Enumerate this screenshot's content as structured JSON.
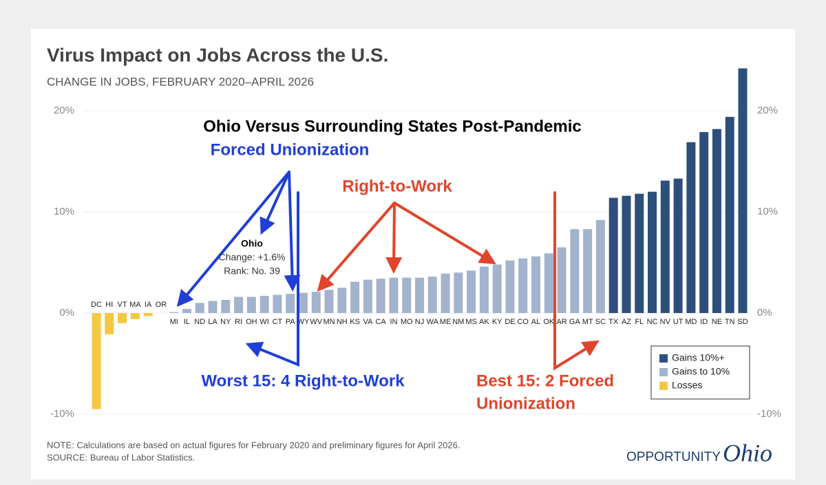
{
  "chart_data": {
    "type": "bar",
    "title": "Virus Impact on Jobs Across the U.S.",
    "subtitle": "CHANGE IN JOBS, FEBRUARY 2020–APRIL 2026",
    "categories": [
      "DC",
      "HI",
      "VT",
      "MA",
      "IA",
      "OR",
      "MI",
      "IL",
      "ND",
      "LA",
      "NY",
      "RI",
      "OH",
      "WI",
      "CT",
      "PA",
      "WY",
      "WV",
      "MN",
      "NH",
      "KS",
      "VA",
      "CA",
      "IN",
      "MO",
      "NJ",
      "WA",
      "ME",
      "NM",
      "MS",
      "AK",
      "KY",
      "DE",
      "CO",
      "AL",
      "OK",
      "AR",
      "GA",
      "MT",
      "SC",
      "TX",
      "AZ",
      "FL",
      "NC",
      "NV",
      "UT",
      "MD",
      "ID",
      "NE",
      "TN",
      "SD"
    ],
    "series": [
      {
        "name": "Gains 10%+",
        "color": "#2c4f7c",
        "values": [
          null,
          null,
          null,
          null,
          null,
          null,
          null,
          null,
          null,
          null,
          null,
          null,
          null,
          null,
          null,
          null,
          null,
          null,
          null,
          null,
          null,
          null,
          null,
          null,
          null,
          null,
          null,
          null,
          null,
          null,
          null,
          null,
          null,
          null,
          null,
          null,
          null,
          null,
          null,
          null,
          11.4,
          11.6,
          11.8,
          12.0,
          13.1,
          13.3,
          16.9,
          17.9,
          18.2,
          19.4,
          24.2
        ]
      },
      {
        "name": "Gains to 10%",
        "color": "#a3b3cd",
        "values": [
          null,
          null,
          null,
          null,
          null,
          null,
          0.1,
          0.4,
          1.0,
          1.2,
          1.3,
          1.6,
          1.6,
          1.7,
          1.8,
          1.9,
          2.0,
          2.1,
          2.3,
          2.5,
          3.1,
          3.3,
          3.4,
          3.5,
          3.5,
          3.5,
          3.6,
          3.9,
          4.0,
          4.2,
          4.6,
          4.8,
          5.2,
          5.4,
          5.6,
          5.9,
          6.5,
          8.3,
          8.3,
          9.2,
          null,
          null,
          null,
          null,
          null,
          null,
          null,
          null,
          null,
          null,
          null
        ]
      },
      {
        "name": "Losses",
        "color": "#f4c842",
        "values": [
          -9.5,
          -2.1,
          -1.0,
          -0.6,
          -0.3,
          0,
          null,
          null,
          null,
          null,
          null,
          null,
          null,
          null,
          null,
          null,
          null,
          null,
          null,
          null,
          null,
          null,
          null,
          null,
          null,
          null,
          null,
          null,
          null,
          null,
          null,
          null,
          null,
          null,
          null,
          null,
          null,
          null,
          null,
          null,
          null,
          null,
          null,
          null,
          null,
          null,
          null,
          null,
          null,
          null,
          null
        ]
      }
    ],
    "ylim": [
      -10,
      24.5
    ],
    "yticks": [
      {
        "value": -10,
        "label": "-10%"
      },
      {
        "value": 0,
        "label": "0%"
      },
      {
        "value": 10,
        "label": "10%"
      },
      {
        "value": 20,
        "label": "20%"
      }
    ],
    "grid": true,
    "ohio_callout": [
      "Ohio",
      "Change: +1.6%",
      "Rank: No. 39"
    ],
    "annotations": [
      "Ohio Versus Surrounding States Post-Pandemic",
      "Forced Unionization",
      "Right-to-Work",
      "Worst 15: 4 Right-to-Work",
      "Best 15: 2 Forced",
      "Unionization"
    ],
    "note": "NOTE: Calculations are based on actual figures for February 2020 and preliminary figures for April 2026.",
    "source": "SOURCE: Bureau of Labor Statistics.",
    "logo": [
      "OPPORTUNITY",
      "Ohio"
    ]
  }
}
